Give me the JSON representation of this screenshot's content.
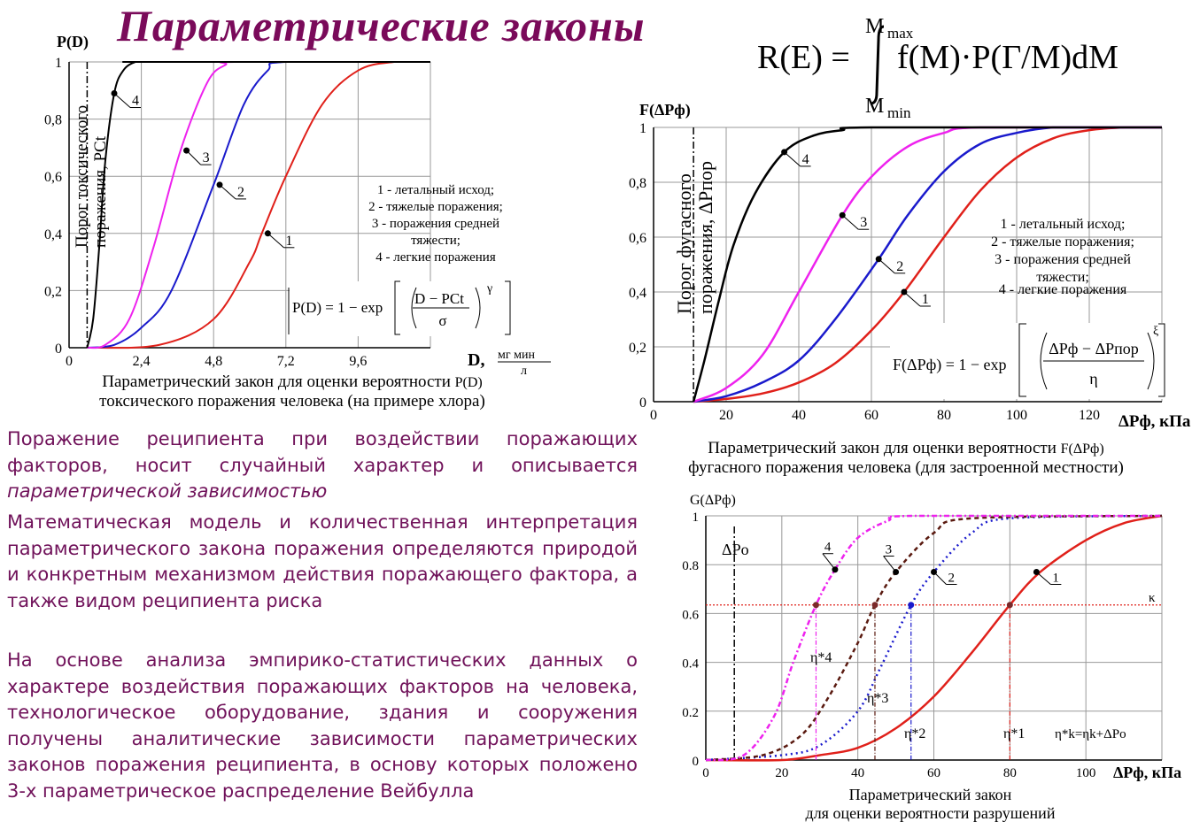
{
  "title": "Параметрические законы",
  "main_formula": {
    "lhs": "R(E) =",
    "integrand": "f(M)·P(Г/M)dM",
    "upper": "M",
    "upper_sub": "max",
    "lower": "M",
    "lower_sub": "min"
  },
  "paragraphs": {
    "p1_text": "Поражение реципиента при воздействии поражающих факторов, носит случайный характер и описывается ",
    "p1_italic": "параметрической зависимостью",
    "p2": "Математическая модель и количественная интерпретация параметрического закона поражения определяются природой и конкретным механизмом действия поражающего фактора, а также видом реципиента риска",
    "p3": "На основе анализа эмпирико-статистических данных о характере воздействия поражающих факторов на человека, технологическое оборудование, здания и сооружения получены аналитические зависимости параметрических законов поражения реципиента, в основу которых положено 3-х параметрическое распределение Вейбулла"
  },
  "legend_lines": [
    "1 - летальный исход;",
    "2 - тяжелые поражения;",
    "3 - поражения средней",
    "тяжести;",
    "4 - легкие поражения"
  ],
  "colors": {
    "title": "#7a0a5a",
    "text": "#70125a",
    "curve1": "#e0201a",
    "curve2": "#1a1acc",
    "curve3": "#ee22ee",
    "curve4": "#000000",
    "curve3_dash": "#5a1a10"
  },
  "chart_data": [
    {
      "type": "line",
      "ylabel": "P(D)",
      "xlabel_main": "D,",
      "xlabel_unit_num": "мг мин",
      "xlabel_unit_den": "л",
      "xticks": [
        "0",
        "2,4",
        "4,8",
        "7,2",
        "9,6"
      ],
      "yticks": [
        "0",
        "0,2",
        "0,4",
        "0,6",
        "0,8",
        "1"
      ],
      "xlim": [
        0,
        12
      ],
      "ylim": [
        0,
        1
      ],
      "threshold_label_1": "Порог токсического",
      "threshold_label_2": "поражения, PCt",
      "threshold_x": 0.6,
      "formula": {
        "lhs": "P(D) = 1 − exp",
        "num": "D − PCt",
        "den": "σ",
        "exp": "γ"
      },
      "series": [
        {
          "name": "1",
          "x": [
            0.6,
            3.0,
            4.8,
            6.0,
            6.4,
            7.2,
            8.4,
            9.6,
            10.8,
            12.0
          ],
          "values": [
            0,
            0.01,
            0.1,
            0.3,
            0.4,
            0.6,
            0.85,
            0.97,
            1.0,
            1.0
          ]
        },
        {
          "name": "2",
          "x": [
            0.6,
            1.5,
            2.4,
            3.4,
            4.8,
            5.8,
            6.6,
            7.2,
            12.0
          ],
          "values": [
            0,
            0.01,
            0.07,
            0.2,
            0.57,
            0.85,
            0.97,
            1.0,
            1.0
          ]
        },
        {
          "name": "3",
          "x": [
            0.6,
            1.2,
            2.0,
            2.8,
            3.7,
            4.6,
            5.2,
            5.6,
            12.0
          ],
          "values": [
            0,
            0.01,
            0.1,
            0.35,
            0.69,
            0.93,
            0.99,
            1.0,
            1.0
          ]
        },
        {
          "name": "4",
          "x": [
            0.6,
            0.8,
            1.0,
            1.2,
            1.5,
            1.8,
            2.2,
            2.6,
            12.0
          ],
          "values": [
            0,
            0.1,
            0.35,
            0.65,
            0.89,
            0.97,
            1.0,
            1.0,
            1.0
          ]
        }
      ],
      "caption_1": "Параметрический закон для оценки вероятности",
      "caption_1b": "P(D)",
      "caption_2": "токсического поражения человека (на примере хлора)"
    },
    {
      "type": "line",
      "ylabel": "F(ΔPф)",
      "xlabel": "ΔPф, кПа",
      "xticks": [
        "0",
        "20",
        "40",
        "60",
        "80",
        "100",
        "120"
      ],
      "yticks": [
        "0",
        "0,2",
        "0,4",
        "0,6",
        "0,8",
        "1"
      ],
      "xlim": [
        0,
        140
      ],
      "ylim": [
        0,
        1
      ],
      "threshold_label_1": "Порог фугасного",
      "threshold_label_2": "поражения, ΔPпор",
      "threshold_x": 11,
      "formula": {
        "lhs": "F(ΔPф) = 1 − exp",
        "num": "ΔPф − ΔPпор",
        "den": "η",
        "exp": "ξ"
      },
      "series": [
        {
          "name": "1",
          "x": [
            11,
            20,
            30,
            40,
            50,
            60,
            69,
            80,
            90,
            100,
            110,
            120,
            130,
            140
          ],
          "values": [
            0,
            0.01,
            0.03,
            0.07,
            0.14,
            0.26,
            0.4,
            0.6,
            0.77,
            0.89,
            0.96,
            0.99,
            1.0,
            1.0
          ]
        },
        {
          "name": "2",
          "x": [
            11,
            20,
            30,
            40,
            50,
            62,
            70,
            80,
            90,
            100,
            110,
            120,
            140
          ],
          "values": [
            0,
            0.02,
            0.07,
            0.15,
            0.3,
            0.52,
            0.68,
            0.84,
            0.94,
            0.98,
            1.0,
            1.0,
            1.0
          ]
        },
        {
          "name": "3",
          "x": [
            11,
            20,
            30,
            40,
            52,
            60,
            70,
            80,
            90,
            140
          ],
          "values": [
            0,
            0.05,
            0.17,
            0.4,
            0.68,
            0.82,
            0.93,
            0.98,
            1.0,
            1.0
          ]
        },
        {
          "name": "4",
          "x": [
            11,
            14,
            18,
            22,
            28,
            36,
            44,
            52,
            60,
            140
          ],
          "values": [
            0,
            0.15,
            0.37,
            0.57,
            0.76,
            0.91,
            0.97,
            0.99,
            1.0,
            1.0
          ]
        }
      ],
      "caption_1": "Параметрический закон для оценки вероятности",
      "caption_1b": "F(ΔPф)",
      "caption_2": "фугасного поражения человека (для застроенной местности)"
    },
    {
      "type": "line",
      "ylabel": "G(ΔPф)",
      "xlabel": "ΔPф, кПа",
      "xticks": [
        "0",
        "20",
        "40",
        "60",
        "80",
        "100"
      ],
      "yticks": [
        "0",
        "0.2",
        "0.4",
        "0.6",
        "0.8",
        "1"
      ],
      "xlim": [
        0,
        120
      ],
      "ylim": [
        0,
        1
      ],
      "threshold_label": "ΔPo",
      "threshold_x": 7.5,
      "kappa_label": "κ",
      "kappa_y": 0.635,
      "formula": "η*k=ηk+ΔPo",
      "eta_labels": [
        "η*4",
        "η*3",
        "η*2",
        "η*1"
      ],
      "eta_x": [
        29,
        44.5,
        54,
        80
      ],
      "series": [
        {
          "name": "1",
          "x": [
            0,
            20,
            30,
            40,
            50,
            60,
            70,
            80,
            88,
            100,
            110,
            120
          ],
          "values": [
            0,
            0.0,
            0.02,
            0.05,
            0.13,
            0.26,
            0.44,
            0.635,
            0.77,
            0.9,
            0.97,
            1.0
          ]
        },
        {
          "name": "2",
          "x": [
            0,
            20,
            30,
            40,
            46,
            54,
            60,
            70,
            80,
            120
          ],
          "values": [
            0,
            0.02,
            0.06,
            0.2,
            0.38,
            0.635,
            0.77,
            0.93,
            0.99,
            1.0
          ]
        },
        {
          "name": "3",
          "x": [
            0,
            15,
            25,
            32,
            40,
            44.5,
            50,
            60,
            70,
            120
          ],
          "values": [
            0,
            0.02,
            0.1,
            0.25,
            0.48,
            0.635,
            0.77,
            0.93,
            0.99,
            1.0
          ]
        },
        {
          "name": "4",
          "x": [
            0,
            10,
            18,
            23,
            29,
            34,
            40,
            48,
            55,
            120
          ],
          "values": [
            0,
            0.02,
            0.18,
            0.4,
            0.635,
            0.78,
            0.91,
            0.98,
            1.0,
            1.0
          ]
        }
      ],
      "caption_1": "Параметрический закон",
      "caption_2": "для оценки вероятности разрушений"
    }
  ]
}
